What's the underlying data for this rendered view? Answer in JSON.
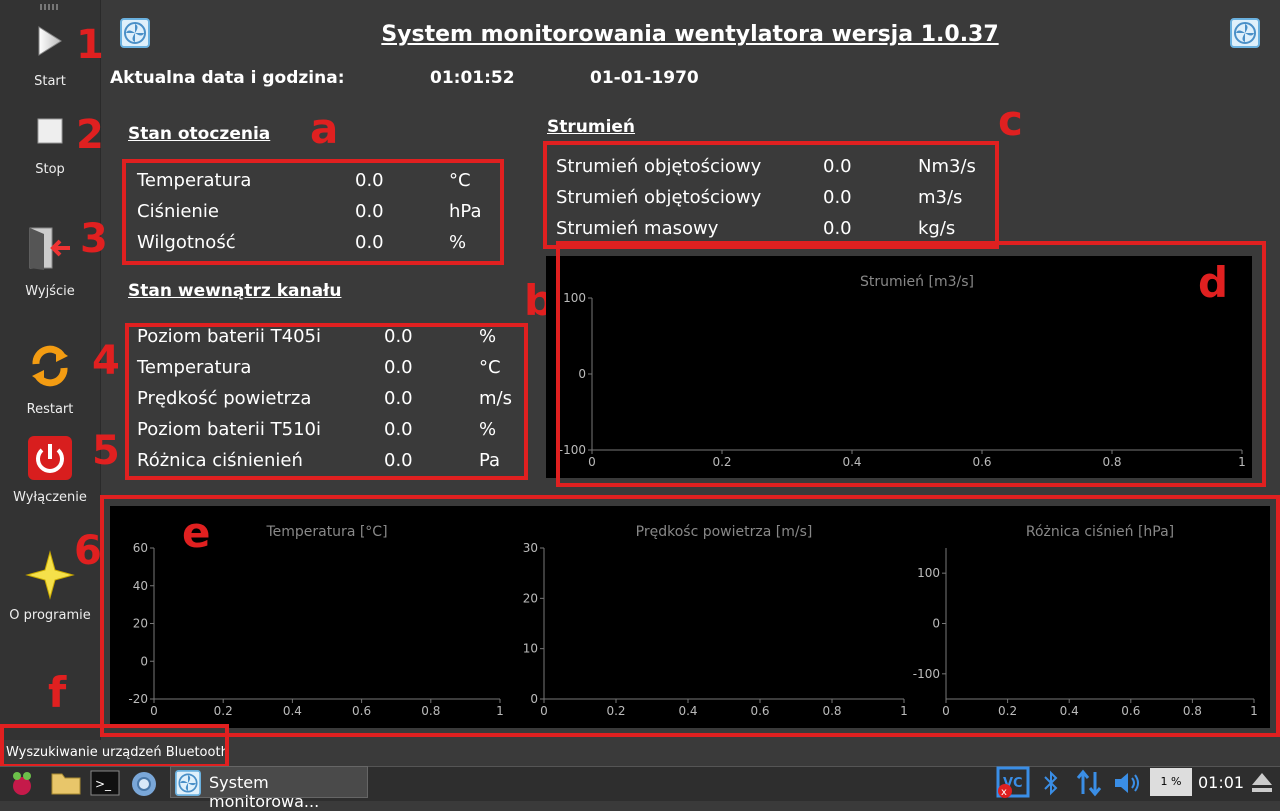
{
  "app": {
    "title": "System monitorowania wentylatora wersja 1.0.37",
    "datetime_label": "Aktualna data i godzina:",
    "time": "01:01:52",
    "date": "01-01-1970"
  },
  "toolbar": {
    "start": "Start",
    "stop": "Stop",
    "exit": "Wyjście",
    "restart": "Restart",
    "shutdown": "Wyłączenie",
    "about": "O programie"
  },
  "annotations": {
    "n1": "1",
    "n2": "2",
    "n3": "3",
    "n4": "4",
    "n5": "5",
    "n6": "6",
    "a": "a",
    "b": "b",
    "c": "c",
    "d": "d",
    "e": "e",
    "f": "f"
  },
  "ambient": {
    "title": "Stan otoczenia",
    "rows": [
      {
        "label": "Temperatura",
        "value": "0.0",
        "unit": "°C"
      },
      {
        "label": "Ciśnienie",
        "value": "0.0",
        "unit": "hPa"
      },
      {
        "label": "Wilgotność",
        "value": "0.0",
        "unit": "%"
      }
    ]
  },
  "duct": {
    "title": "Stan wewnątrz kanału",
    "rows": [
      {
        "label": "Poziom baterii T405i",
        "value": "0.0",
        "unit": "%"
      },
      {
        "label": "Temperatura",
        "value": "0.0",
        "unit": "°C"
      },
      {
        "label": "Prędkość powietrza",
        "value": "0.0",
        "unit": "m/s"
      },
      {
        "label": "Poziom baterii T510i",
        "value": "0.0",
        "unit": "%"
      },
      {
        "label": "Różnica ciśnienień",
        "value": "0.0",
        "unit": "Pa"
      }
    ]
  },
  "flow": {
    "title": "Strumień",
    "rows": [
      {
        "label": "Strumień objętościowy",
        "value": "0.0",
        "unit": "Nm3/s"
      },
      {
        "label": "Strumień objętościowy",
        "value": "0.0",
        "unit": "m3/s"
      },
      {
        "label": "Strumień masowy",
        "value": "0.0",
        "unit": "kg/s"
      }
    ]
  },
  "chart_data": [
    {
      "type": "line",
      "title": "Strumień [m3/s]",
      "series": [],
      "xlim": [
        0,
        1
      ],
      "ylim": [
        -100,
        100
      ],
      "xticks": [
        "0",
        "0.2",
        "0.4",
        "0.6",
        "0.8",
        "1"
      ],
      "yticks": [
        "100",
        "0",
        "-100"
      ]
    },
    {
      "type": "line",
      "title": "Temperatura [°C]",
      "series": [],
      "xlim": [
        0,
        1
      ],
      "ylim": [
        -20,
        60
      ],
      "xticks": [
        "0",
        "0.2",
        "0.4",
        "0.6",
        "0.8",
        "1"
      ],
      "yticks": [
        "60",
        "40",
        "20",
        "0",
        "-20"
      ]
    },
    {
      "type": "line",
      "title": "Prędkośc powietrza [m/s]",
      "series": [],
      "xlim": [
        0,
        1
      ],
      "ylim": [
        0,
        30
      ],
      "xticks": [
        "0",
        "0.2",
        "0.4",
        "0.6",
        "0.8",
        "1"
      ],
      "yticks": [
        "30",
        "20",
        "10",
        "0"
      ]
    },
    {
      "type": "line",
      "title": "Różnica ciśnień [hPa]",
      "series": [],
      "xlim": [
        0,
        1
      ],
      "ylim": [
        -150,
        150
      ],
      "xticks": [
        "0",
        "0.2",
        "0.4",
        "0.6",
        "0.8",
        "1"
      ],
      "yticks": [
        "100",
        "0",
        "-100"
      ]
    }
  ],
  "status": {
    "text": "Wyszukiwanie urządzeń Bluetooth"
  },
  "taskbar": {
    "window": "System monitorowa...",
    "cpu": "1 %",
    "clock": "01:01"
  },
  "colors": {
    "annotation": "#e02020",
    "panel": "#000000",
    "background": "#3a3a3a"
  }
}
